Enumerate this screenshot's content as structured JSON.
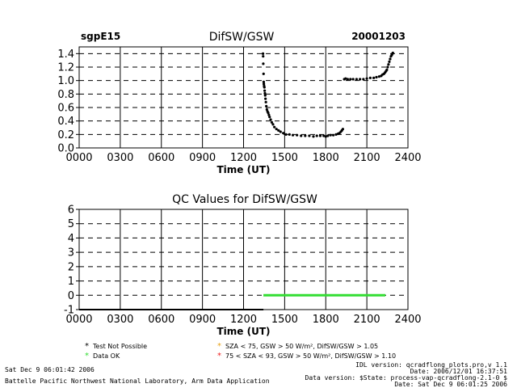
{
  "header": {
    "site": "sgpE15",
    "date": "20001203"
  },
  "chart_data": [
    {
      "type": "scatter",
      "title": "DifSW/GSW",
      "xlabel": "Time (UT)",
      "ylabel": "",
      "xlim": [
        0,
        2400
      ],
      "ylim": [
        0.0,
        1.5
      ],
      "x_ticks": [
        "0000",
        "0300",
        "0600",
        "0900",
        "1200",
        "1500",
        "1800",
        "2100",
        "2400"
      ],
      "y_ticks": [
        "0.0",
        "0.2",
        "0.4",
        "0.6",
        "0.8",
        "1.0",
        "1.2",
        "1.4"
      ],
      "grid": true,
      "series": [
        {
          "color": "#000000",
          "x": [
            1342,
            1343,
            1344,
            1346,
            1347,
            1348,
            1350,
            1352,
            1354,
            1356,
            1358,
            1360,
            1363,
            1366,
            1370,
            1375,
            1380,
            1385,
            1390,
            1398,
            1406,
            1415,
            1425,
            1440,
            1455,
            1470,
            1490,
            1510,
            1535,
            1560,
            1590,
            1620,
            1650,
            1680,
            1710,
            1735,
            1760,
            1785,
            1800,
            1815,
            1835,
            1855,
            1875,
            1890,
            1900,
            1910,
            1918,
            1925,
            1935,
            1945,
            1960,
            1980,
            2000,
            2025,
            2050,
            2075,
            2100,
            2125,
            2150,
            2170,
            2190,
            2205,
            2215,
            2225,
            2233,
            2240,
            2246,
            2252,
            2258,
            2264,
            2270,
            2276,
            2282,
            2287,
            2290
          ],
          "y": [
            1.4,
            1.36,
            1.25,
            1.1,
            0.98,
            0.95,
            0.92,
            0.9,
            0.85,
            0.81,
            0.78,
            0.73,
            0.68,
            0.62,
            0.57,
            0.54,
            0.52,
            0.49,
            0.46,
            0.42,
            0.38,
            0.35,
            0.31,
            0.28,
            0.26,
            0.24,
            0.22,
            0.2,
            0.2,
            0.19,
            0.19,
            0.18,
            0.18,
            0.18,
            0.17,
            0.18,
            0.18,
            0.18,
            0.17,
            0.18,
            0.19,
            0.19,
            0.2,
            0.21,
            0.22,
            0.24,
            0.26,
            0.28,
            1.02,
            1.03,
            1.02,
            1.02,
            1.02,
            1.02,
            1.02,
            1.02,
            1.03,
            1.04,
            1.04,
            1.05,
            1.06,
            1.07,
            1.09,
            1.1,
            1.12,
            1.14,
            1.16,
            1.2,
            1.24,
            1.28,
            1.32,
            1.36,
            1.38,
            1.4,
            1.41
          ]
        }
      ]
    },
    {
      "type": "line",
      "title": "QC Values for DifSW/GSW",
      "xlabel": "Time (UT)",
      "ylabel": "",
      "xlim": [
        0,
        2400
      ],
      "ylim": [
        -1,
        6
      ],
      "x_ticks": [
        "0000",
        "0300",
        "0600",
        "0900",
        "1200",
        "1500",
        "1800",
        "2100",
        "2400"
      ],
      "y_ticks": [
        "-1",
        "0",
        "1",
        "2",
        "3",
        "4",
        "5",
        "6"
      ],
      "grid": true,
      "series": [
        {
          "color": "#000000",
          "x": [
            0,
            1345
          ],
          "y": [
            -1,
            -1
          ]
        },
        {
          "color": "#33dd33",
          "x": [
            1345,
            2235
          ],
          "y": [
            0,
            0
          ]
        }
      ]
    }
  ],
  "legend": [
    {
      "marker": "*",
      "color": "#000000",
      "text": "Test Not Possible"
    },
    {
      "marker": "*",
      "color": "#e8a317",
      "text": "SZA < 75, GSW > 50 W/m², DifSW/GSW > 1.05"
    },
    {
      "marker": "*",
      "color": "#33dd33",
      "text": "Data OK"
    },
    {
      "marker": "*",
      "color": "#ee2222",
      "text": "75 < SZA < 93, GSW > 50 W/m², DifSW/GSW > 1.10"
    }
  ],
  "footer": {
    "run_date": "Sat Dec  9 06:01:42 2006",
    "lab": "Battelle Pacific Northwest National Laboratory, Arm Data Application",
    "idl_version": "IDL version: qcradflong_plots.pro,v 1.1",
    "idl_date": "Date: 2006/12/01 16:37:51",
    "data_version": "Data version: $State: process-vap-qcradflong-2.1-0 $",
    "data_date": "Date: Sat Dec  9 06:01:25 2006"
  }
}
